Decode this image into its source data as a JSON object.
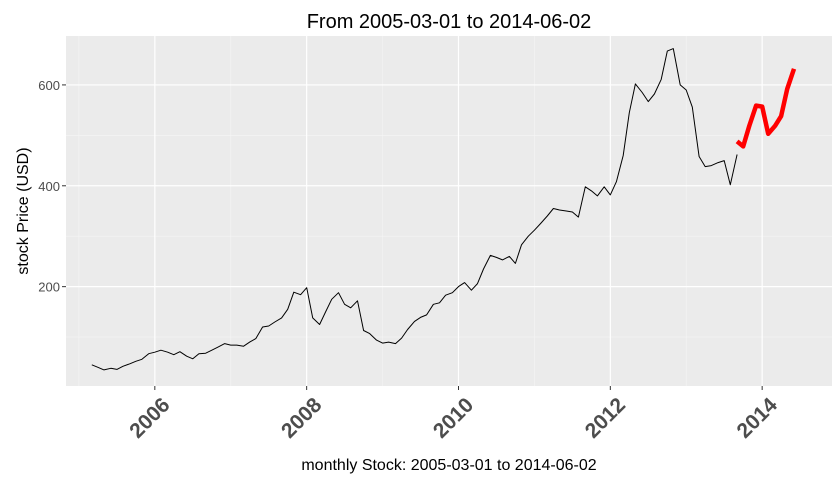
{
  "chart_data": {
    "type": "line",
    "title": "From 2005-03-01 to 2014-06-02",
    "xlabel": "monthly Stock: 2005-03-01 to 2014-06-02",
    "ylabel": "stock Price (USD)",
    "xlim": [
      2004.83,
      2014.92
    ],
    "ylim": [
      3,
      697
    ],
    "x_ticks": [
      2006,
      2008,
      2010,
      2012,
      2014
    ],
    "x_tick_labels": [
      "2006",
      "2008",
      "2010",
      "2012",
      "2014"
    ],
    "y_ticks": [
      200,
      400,
      600
    ],
    "y_tick_labels": [
      "200",
      "400",
      "600"
    ],
    "grid": true,
    "legend": "none",
    "colors": {
      "panel_background": "#ebebeb",
      "grid_major": "#ffffff",
      "grid_minor": "#f5f5f5",
      "history_line": "#000000",
      "recent_line": "#ff0000"
    },
    "series": [
      {
        "x": [
          2005.17,
          2005.25,
          2005.33,
          2005.42,
          2005.5,
          2005.58,
          2005.67,
          2005.75,
          2005.83,
          2005.92,
          2006.0,
          2006.08,
          2006.17,
          2006.25,
          2006.33,
          2006.42,
          2006.5,
          2006.58,
          2006.67,
          2006.75,
          2006.83,
          2006.92,
          2007.0,
          2007.08,
          2007.17,
          2007.25,
          2007.33,
          2007.42,
          2007.5,
          2007.58,
          2007.67,
          2007.75,
          2007.83,
          2007.92,
          2008.0,
          2008.08,
          2008.17,
          2008.25,
          2008.33,
          2008.42,
          2008.5,
          2008.58,
          2008.67,
          2008.75,
          2008.83,
          2008.92,
          2009.0,
          2009.08,
          2009.17,
          2009.25,
          2009.33,
          2009.42,
          2009.5,
          2009.58,
          2009.67,
          2009.75,
          2009.83,
          2009.92,
          2010.0,
          2010.08,
          2010.17,
          2010.25,
          2010.33,
          2010.42,
          2010.5,
          2010.58,
          2010.67,
          2010.75,
          2010.83,
          2010.92,
          2011.0,
          2011.08,
          2011.17,
          2011.25,
          2011.33,
          2011.42,
          2011.5,
          2011.58,
          2011.67,
          2011.75,
          2011.83,
          2011.92,
          2012.0,
          2012.08,
          2012.17,
          2012.25,
          2012.33,
          2012.42,
          2012.5,
          2012.58,
          2012.67,
          2012.75,
          2012.83,
          2012.92,
          2013.0,
          2013.08,
          2013.17,
          2013.25,
          2013.33,
          2013.42,
          2013.5,
          2013.58,
          2013.67
        ],
        "y": [
          45,
          40,
          35,
          38,
          36,
          42,
          47,
          52,
          56,
          67,
          70,
          74,
          70,
          65,
          71,
          62,
          57,
          67,
          68,
          74,
          80,
          87,
          84,
          84,
          82,
          90,
          97,
          120,
          122,
          130,
          138,
          155,
          189,
          184,
          198,
          138,
          125,
          150,
          175,
          188,
          165,
          158,
          172,
          113,
          107,
          94,
          88,
          90,
          87,
          98,
          115,
          131,
          139,
          144,
          165,
          168,
          183,
          188,
          200,
          208,
          193,
          206,
          235,
          262,
          258,
          253,
          260,
          246,
          283,
          300,
          312,
          325,
          340,
          355,
          352,
          350,
          348,
          338,
          398,
          390,
          380,
          398,
          382,
          408,
          460,
          545,
          602,
          585,
          567,
          582,
          611,
          667,
          672,
          600,
          590,
          556,
          458,
          438,
          440,
          446,
          450,
          402,
          462
        ]
      },
      {
        "x": [
          2013.67,
          2013.75,
          2013.83,
          2013.92,
          2014.0,
          2014.08,
          2014.17,
          2014.25,
          2014.33,
          2014.42
        ],
        "y": [
          488,
          478,
          519,
          559,
          557,
          503,
          519,
          538,
          592,
          632
        ]
      }
    ]
  }
}
